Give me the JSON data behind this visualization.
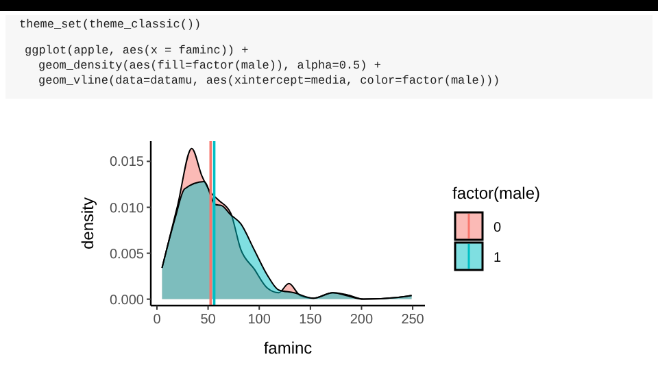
{
  "chart_data": {
    "type": "area",
    "xlabel": "faminc",
    "ylabel": "density",
    "legend_title": "factor(male)",
    "legend": "right",
    "grid": false,
    "annotations": [
      "theme_set(theme_classic())",
      "ggplot(apple, aes(x = faminc)) +",
      "geom_density(aes(fill=factor(male)), alpha=0.5) +",
      "geom_vline(data=datamu, aes(xintercept=media, color=factor(male)))"
    ],
    "xlim": [
      -6,
      262
    ],
    "ylim": [
      -0.0007,
      0.0172
    ],
    "xticks": [
      0,
      50,
      100,
      150,
      200,
      250
    ],
    "yticks": [
      {
        "value": 0,
        "label": "0.000"
      },
      {
        "value": 0.005,
        "label": "0.005"
      },
      {
        "value": 0.01,
        "label": "0.010"
      },
      {
        "value": 0.015,
        "label": "0.015"
      }
    ],
    "series": [
      {
        "name": "0",
        "color": "#f8766d",
        "x": [
          5,
          20,
          34,
          44,
          52,
          60,
          72,
          82,
          95,
          108,
          119,
          129,
          140,
          153,
          172,
          185,
          202,
          236,
          249
        ],
        "values": [
          0.0034,
          0.0101,
          0.0164,
          0.0134,
          0.0117,
          0.0108,
          0.0094,
          0.0054,
          0.0033,
          0.0012,
          0.0007,
          0.0017,
          0.0004,
          0.0001,
          0.0007,
          0.0005,
          0,
          0.0002,
          0.0004
        ]
      },
      {
        "name": "1",
        "color": "#00bfc4",
        "x": [
          5,
          18,
          27,
          46,
          57,
          63,
          72,
          82,
          95,
          108,
          119,
          134,
          153,
          172,
          185,
          202,
          236,
          249
        ],
        "values": [
          0.0034,
          0.0089,
          0.012,
          0.0128,
          0.0103,
          0.0102,
          0.0092,
          0.0082,
          0.0054,
          0.0026,
          0.001,
          0.0007,
          0.0001,
          0.0007,
          0.0004,
          0,
          0.0002,
          0.0004
        ]
      }
    ],
    "ref_lines": [
      {
        "axis": "x",
        "value": 52.5,
        "color": "#f8766d"
      },
      {
        "axis": "x",
        "value": 56,
        "color": "#00bfc4"
      }
    ]
  }
}
